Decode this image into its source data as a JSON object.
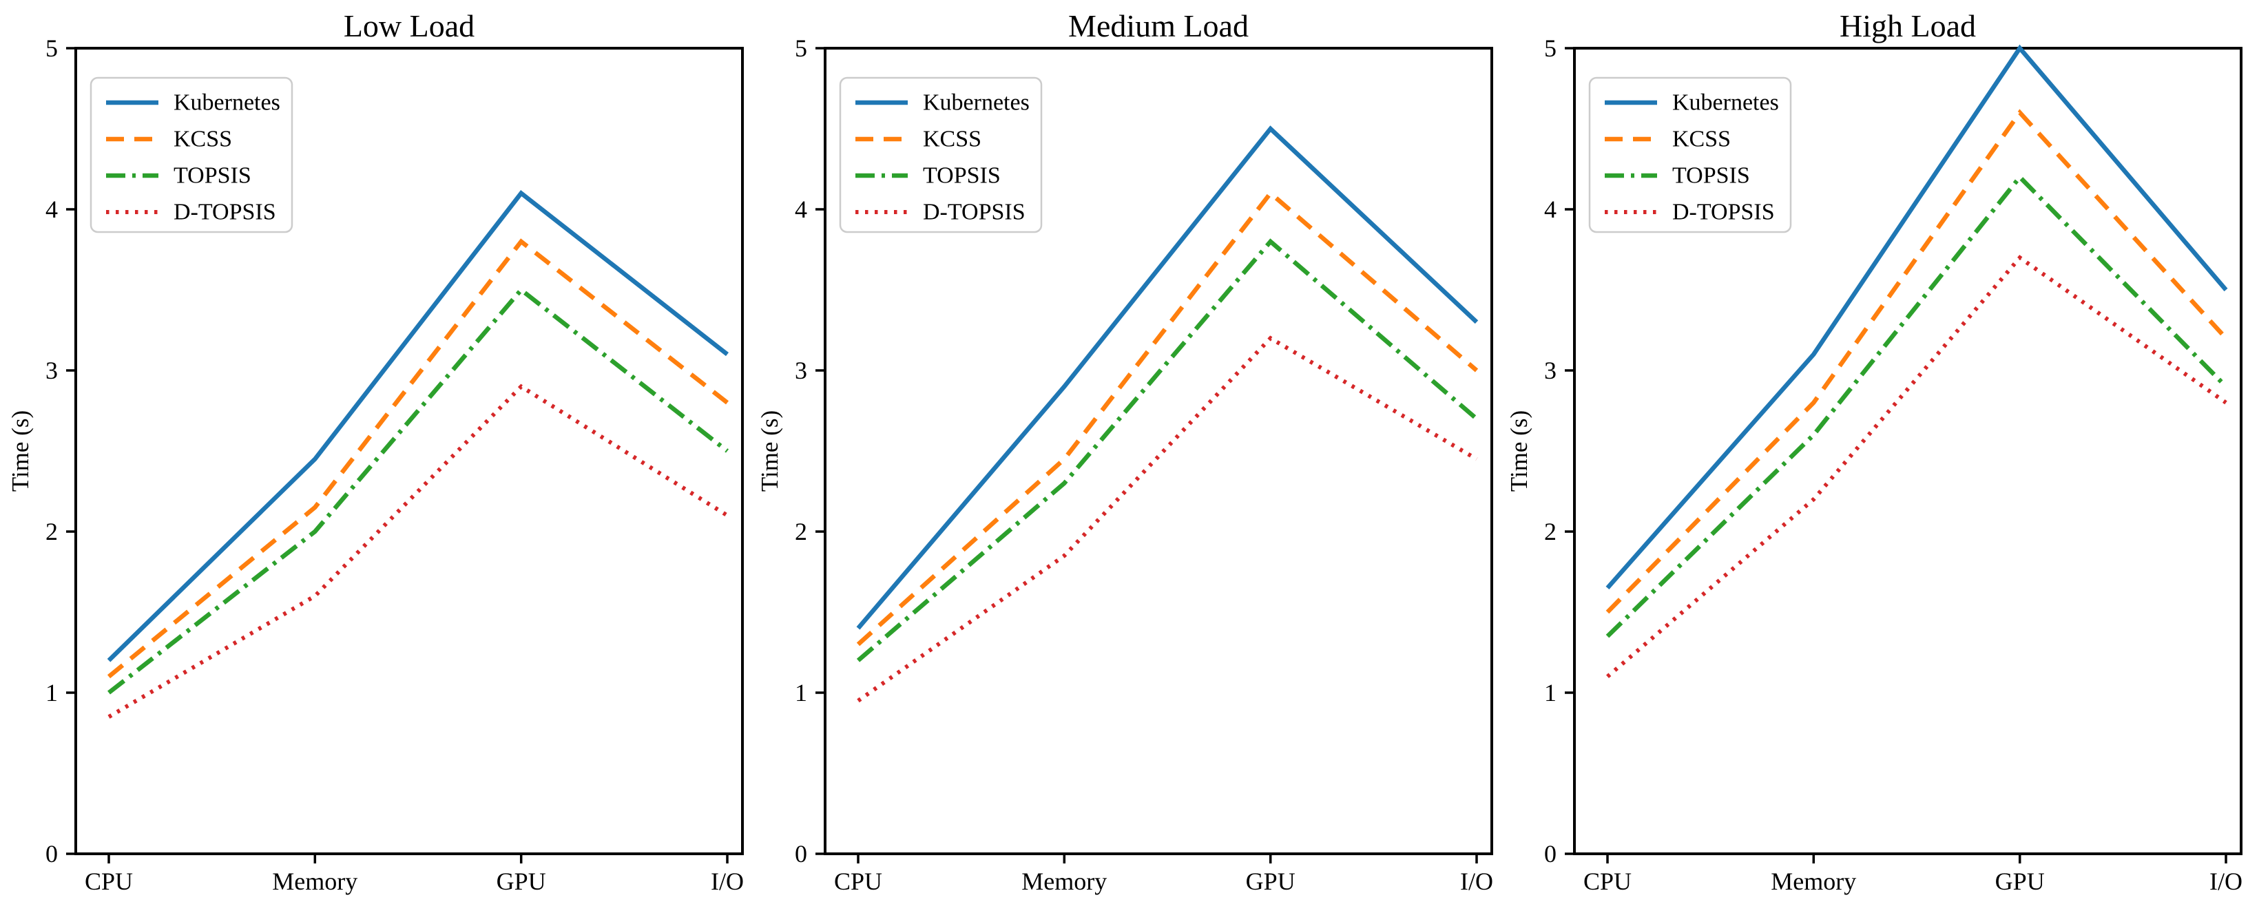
{
  "figure": {
    "background": "#ffffff",
    "axis_color": "#000000",
    "text_color": "#000000",
    "ylabel": "Time (s)",
    "ylim": [
      0,
      5
    ],
    "y_ticks": [
      "0",
      "1",
      "2",
      "3",
      "4",
      "5"
    ],
    "categories": [
      "CPU",
      "Memory",
      "GPU",
      "I/O"
    ],
    "legend": {
      "position": "upper left",
      "border_color": "#cccccc",
      "background": "#ffffff",
      "entries": [
        "Kubernetes",
        "KCSS",
        "TOPSIS",
        "D-TOPSIS"
      ]
    },
    "series_styles": [
      {
        "name": "Kubernetes",
        "color": "#1f77b4",
        "line_style": "solid"
      },
      {
        "name": "KCSS",
        "color": "#ff7f0e",
        "line_style": "dashed"
      },
      {
        "name": "TOPSIS",
        "color": "#2ca02c",
        "line_style": "dashdot"
      },
      {
        "name": "D-TOPSIS",
        "color": "#d62728",
        "line_style": "dotted"
      }
    ]
  },
  "chart_data": [
    {
      "type": "line",
      "title": "Low Load",
      "xlabel": "",
      "ylabel": "Time (s)",
      "categories": [
        "CPU",
        "Memory",
        "GPU",
        "I/O"
      ],
      "ylim": [
        0,
        5
      ],
      "y_ticks": [
        0,
        1,
        2,
        3,
        4,
        5
      ],
      "grid": false,
      "legend_position": "upper left",
      "series": [
        {
          "name": "Kubernetes",
          "color": "#1f77b4",
          "line_style": "solid",
          "values": [
            1.2,
            2.45,
            4.1,
            3.1
          ]
        },
        {
          "name": "KCSS",
          "color": "#ff7f0e",
          "line_style": "dashed",
          "values": [
            1.1,
            2.15,
            3.8,
            2.8
          ]
        },
        {
          "name": "TOPSIS",
          "color": "#2ca02c",
          "line_style": "dashdot",
          "values": [
            1.0,
            2.0,
            3.5,
            2.5
          ]
        },
        {
          "name": "D-TOPSIS",
          "color": "#d62728",
          "line_style": "dotted",
          "values": [
            0.85,
            1.6,
            2.9,
            2.1
          ]
        }
      ]
    },
    {
      "type": "line",
      "title": "Medium Load",
      "xlabel": "",
      "ylabel": "Time (s)",
      "categories": [
        "CPU",
        "Memory",
        "GPU",
        "I/O"
      ],
      "ylim": [
        0,
        5
      ],
      "y_ticks": [
        0,
        1,
        2,
        3,
        4,
        5
      ],
      "grid": false,
      "legend_position": "upper left",
      "series": [
        {
          "name": "Kubernetes",
          "color": "#1f77b4",
          "line_style": "solid",
          "values": [
            1.4,
            2.9,
            4.5,
            3.3
          ]
        },
        {
          "name": "KCSS",
          "color": "#ff7f0e",
          "line_style": "dashed",
          "values": [
            1.3,
            2.45,
            4.1,
            3.0
          ]
        },
        {
          "name": "TOPSIS",
          "color": "#2ca02c",
          "line_style": "dashdot",
          "values": [
            1.2,
            2.3,
            3.8,
            2.7
          ]
        },
        {
          "name": "D-TOPSIS",
          "color": "#d62728",
          "line_style": "dotted",
          "values": [
            0.95,
            1.85,
            3.2,
            2.45
          ]
        }
      ]
    },
    {
      "type": "line",
      "title": "High Load",
      "xlabel": "",
      "ylabel": "Time (s)",
      "categories": [
        "CPU",
        "Memory",
        "GPU",
        "I/O"
      ],
      "ylim": [
        0,
        5
      ],
      "y_ticks": [
        0,
        1,
        2,
        3,
        4,
        5
      ],
      "grid": false,
      "legend_position": "upper left",
      "series": [
        {
          "name": "Kubernetes",
          "color": "#1f77b4",
          "line_style": "solid",
          "values": [
            1.65,
            3.1,
            5.0,
            3.5
          ]
        },
        {
          "name": "KCSS",
          "color": "#ff7f0e",
          "line_style": "dashed",
          "values": [
            1.5,
            2.8,
            4.6,
            3.2
          ]
        },
        {
          "name": "TOPSIS",
          "color": "#2ca02c",
          "line_style": "dashdot",
          "values": [
            1.35,
            2.6,
            4.2,
            2.9
          ]
        },
        {
          "name": "D-TOPSIS",
          "color": "#d62728",
          "line_style": "dotted",
          "values": [
            1.1,
            2.2,
            3.7,
            2.8
          ]
        }
      ]
    }
  ]
}
